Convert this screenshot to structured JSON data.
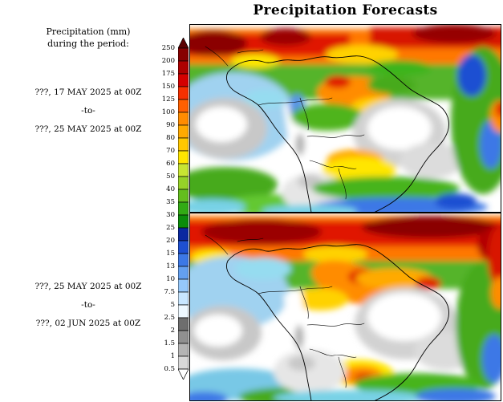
{
  "title": "Precipitation Forecasts",
  "legend": {
    "heading1": "Precipitation (mm)",
    "heading2": "during the period:"
  },
  "periods": {
    "panel1": {
      "start": "???, 17 MAY 2025 at 00Z",
      "sep": "-to-",
      "end": "???, 25 MAY 2025 at 00Z"
    },
    "panel2": {
      "start": "???, 25 MAY 2025 at 00Z",
      "sep": "-to-",
      "end": "???, 02 JUN 2025 at 00Z"
    }
  },
  "colorbar": {
    "units": "mm",
    "tick_labels": [
      "250",
      "200",
      "175",
      "150",
      "125",
      "100",
      "90",
      "80",
      "70",
      "60",
      "50",
      "40",
      "35",
      "30",
      "25",
      "20",
      "15",
      "13",
      "10",
      "7.5",
      "5",
      "2.5",
      "2",
      "1.5",
      "1",
      "0.5"
    ],
    "segment_colors": [
      "#870000",
      "#ad0000",
      "#d40000",
      "#f63000",
      "#ff6000",
      "#ff8c00",
      "#ffaa00",
      "#ffc800",
      "#ffe600",
      "#c8e632",
      "#96d228",
      "#64be1e",
      "#32aa14",
      "#0a8c0a",
      "#0a28a0",
      "#1e50d2",
      "#3c78e6",
      "#64a0f0",
      "#96c8fa",
      "#c8e6ff",
      "#eef8ff",
      "#6e6e6e",
      "#909090",
      "#b4b4b4",
      "#d8d8d8"
    ],
    "arrow_top_color": "#5a0000",
    "arrow_bottom_color": "#ffffff"
  },
  "chart_data": {
    "type": "heatmap",
    "title": "Precipitation Forecasts",
    "variable": "Accumulated precipitation during the period",
    "units": "mm",
    "region": "South America and adjacent Pacific and Atlantic oceans",
    "levels_mm": [
      0.5,
      1,
      1.5,
      2,
      2.5,
      5,
      7.5,
      10,
      13,
      15,
      20,
      25,
      30,
      35,
      40,
      50,
      60,
      70,
      80,
      90,
      100,
      125,
      150,
      175,
      200,
      250
    ],
    "palette_low_to_high": [
      "#ffffff",
      "#d8d8d8",
      "#b4b4b4",
      "#909090",
      "#6e6e6e",
      "#eef8ff",
      "#c8e6ff",
      "#96c8fa",
      "#64a0f0",
      "#3c78e6",
      "#1e50d2",
      "#0a28a0",
      "#0a8c0a",
      "#32aa14",
      "#64be1e",
      "#96d228",
      "#c8e632",
      "#ffe600",
      "#ffc800",
      "#ffaa00",
      "#ff8c00",
      "#ff6000",
      "#f63000",
      "#d40000",
      "#ad0000",
      "#870000",
      "#5a0000"
    ],
    "legend_position": "left",
    "panels": [
      {
        "position": "top",
        "period_start": "???, 17 MAY 2025 at 00Z",
        "period_end": "???, 25 MAY 2025 at 00Z",
        "pattern_summary": "Heavy ITCZ rain band (100 to >250 mm, orange/red/dark red) across northern South America and the adjacent tropical Atlantic; dry pockets (<2.5 mm, gray/white) over the subtropical southeast Pacific, eastern Brazil and the Argentine plains; moderate 5-60 mm green/blue bands over the southern oceans and an orange 60-100 mm patch near the subtropics."
      },
      {
        "position": "bottom",
        "period_start": "???, 25 MAY 2025 at 00Z",
        "period_end": "???, 02 JUN 2025 at 00Z",
        "pattern_summary": "Broader, stronger ITCZ band of 100 to >250 mm across the north including the far Atlantic; enlarged dry (<2.5 mm) white/gray zone over eastern Brazil and the southeast Pacific; orange 60-100 mm plume over the western/central Amazon; scattered 5-40 mm cyan/green/blue bands across the southern oceans with a local orange/red maximum south of Brazil."
      }
    ]
  }
}
